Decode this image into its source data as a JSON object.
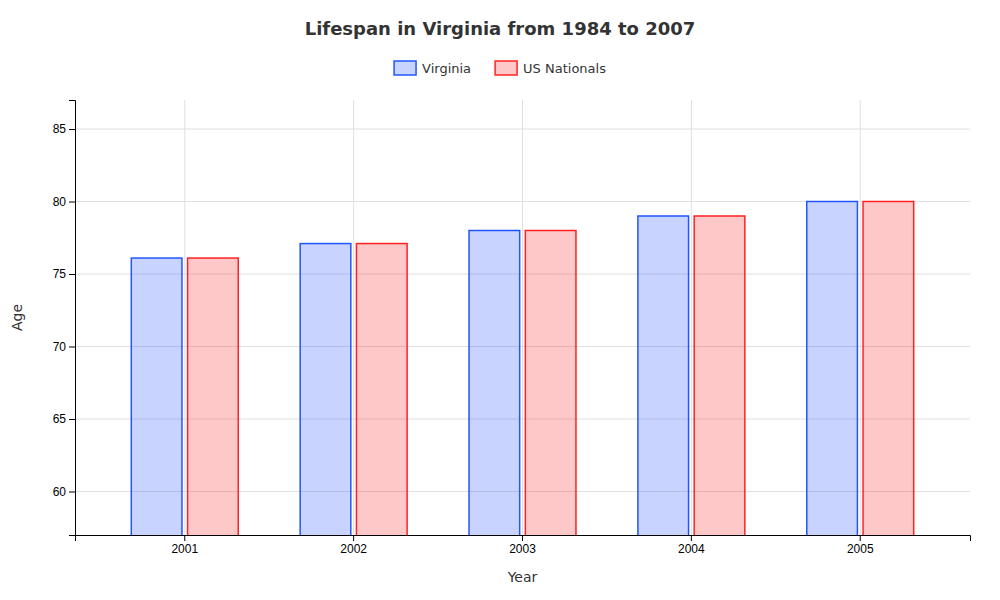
{
  "chart_data": {
    "type": "bar",
    "title": "Lifespan in Virginia from 1984 to 2007",
    "xlabel": "Year",
    "ylabel": "Age",
    "categories": [
      "2001",
      "2002",
      "2003",
      "2004",
      "2005"
    ],
    "series": [
      {
        "name": "Virginia",
        "color": "#2255ff",
        "values": [
          76.1,
          77.1,
          78.0,
          79.0,
          80.0
        ]
      },
      {
        "name": "US Nationals",
        "color": "#ff2222",
        "values": [
          76.1,
          77.1,
          78.0,
          79.0,
          80.0
        ]
      }
    ],
    "ylim": [
      57,
      87
    ],
    "yticks": [
      60,
      65,
      70,
      75,
      80,
      85
    ],
    "grid": true,
    "legend": "top"
  }
}
